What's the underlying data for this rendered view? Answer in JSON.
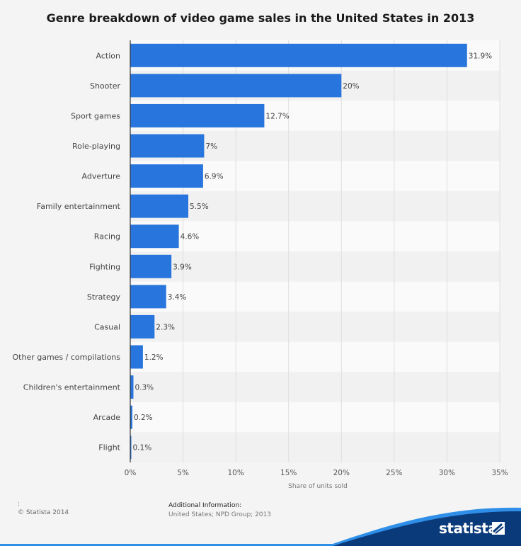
{
  "chart_data": {
    "type": "bar",
    "orientation": "horizontal",
    "title": "Genre breakdown of video game sales in the United States in 2013",
    "categories": [
      "Action",
      "Shooter",
      "Sport games",
      "Role-playing",
      "Adverture",
      "Family entertainment",
      "Racing",
      "Fighting",
      "Strategy",
      "Casual",
      "Other games / compilations",
      "Children's entertainment",
      "Arcade",
      "Flight"
    ],
    "values": [
      31.9,
      20,
      12.7,
      7,
      6.9,
      5.5,
      4.6,
      3.9,
      3.4,
      2.3,
      1.2,
      0.3,
      0.2,
      0.1
    ],
    "value_labels": [
      "31.9%",
      "20%",
      "12.7%",
      "7%",
      "6.9%",
      "5.5%",
      "4.6%",
      "3.9%",
      "3.4%",
      "2.3%",
      "1.2%",
      "0.3%",
      "0.2%",
      "0.1%"
    ],
    "xlabel": "Share of units sold",
    "ylabel": "",
    "xlim": [
      0,
      35
    ],
    "xticks": [
      0,
      5,
      10,
      15,
      20,
      25,
      30,
      35
    ],
    "xtick_labels": [
      "0%",
      "5%",
      "10%",
      "15%",
      "20%",
      "25%",
      "30%",
      "35%"
    ],
    "grid": true,
    "bar_color": "#2876dd"
  },
  "footer": {
    "marker": ":",
    "copyright": "© Statista 2014",
    "info_heading": "Additional Information:",
    "info_source": "United States; NPD Group; 2013"
  },
  "brand": {
    "name": "statista",
    "color": "#0b3a7a"
  }
}
